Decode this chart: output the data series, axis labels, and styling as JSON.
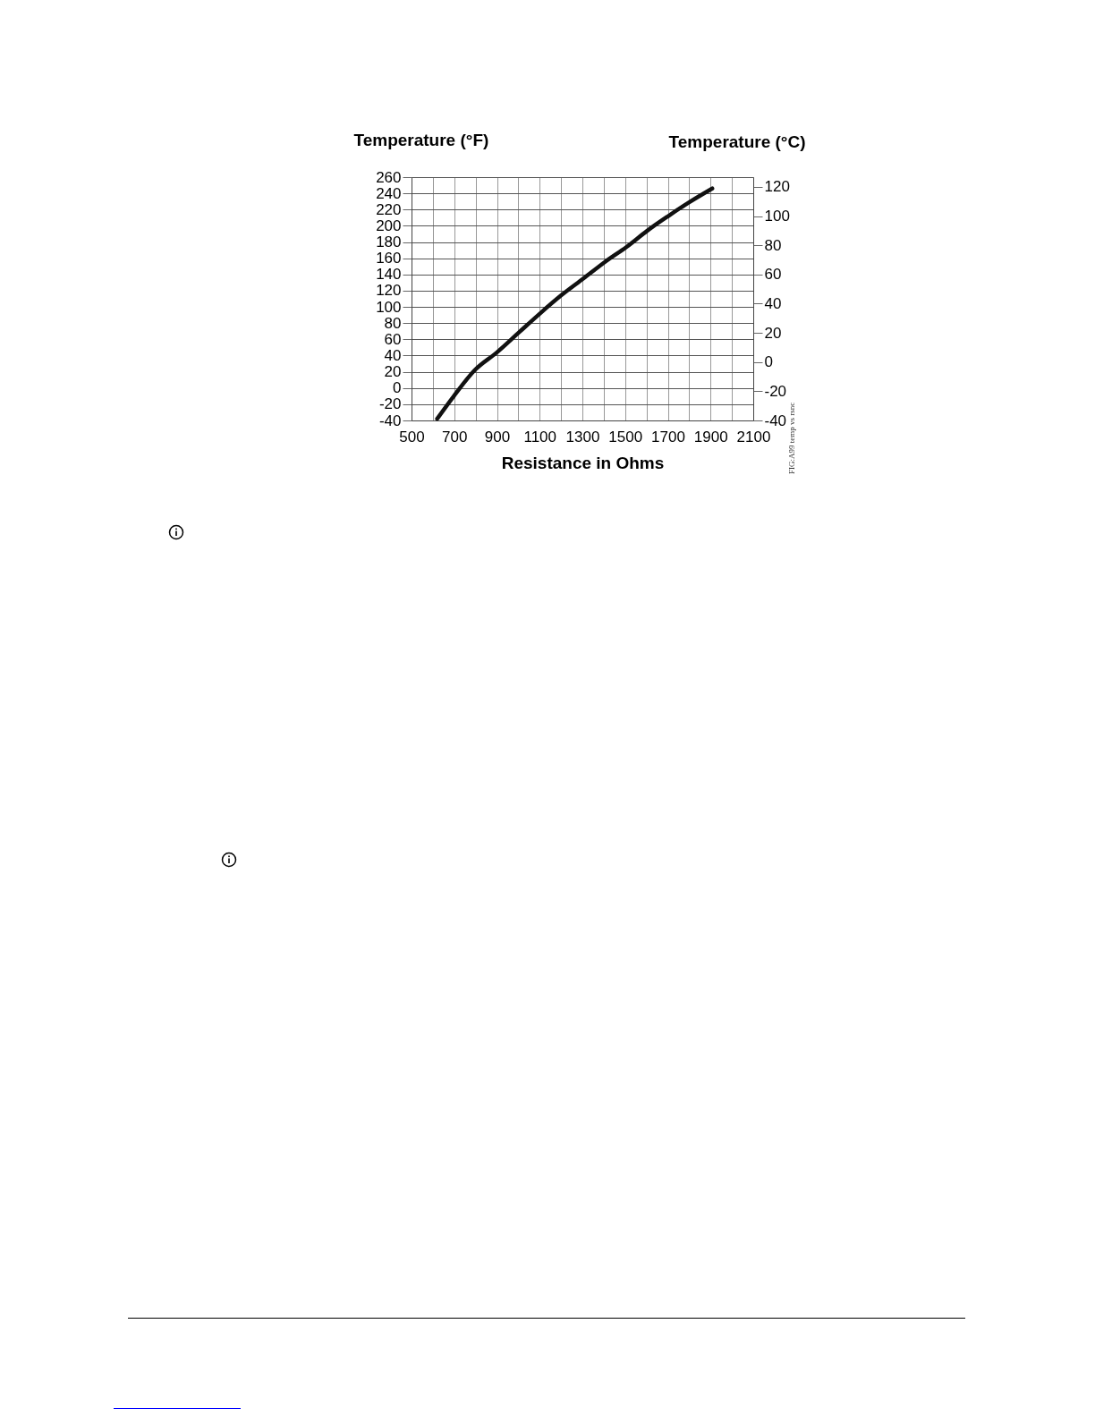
{
  "chart_data": {
    "type": "line",
    "xlabel": "Resistance in Ohms",
    "ylabel": "Temperature (°F)",
    "y2label": "Temperature (°C)",
    "annotations": [
      "FIG:A99 temp vs rsnc"
    ],
    "x": [
      620,
      698,
      796,
      900,
      1005,
      1102,
      1200,
      1305,
      1409,
      1507,
      1604,
      1702,
      1800,
      1908
    ],
    "series": [
      {
        "color": "#111111",
        "values": [
          -38,
          -10,
          22,
          44,
          69,
          92,
          114,
          135,
          156,
          174,
          194,
          212,
          229,
          246
        ]
      }
    ],
    "xlim": [
      500,
      2100
    ],
    "xticks": [
      500,
      {
        "value": 600,
        "label": null
      },
      700,
      {
        "value": 800,
        "label": null
      },
      900,
      {
        "value": 1000,
        "label": null
      },
      1100,
      {
        "value": 1200,
        "label": null
      },
      1300,
      {
        "value": 1400,
        "label": null
      },
      1500,
      {
        "value": 1600,
        "label": null
      },
      1700,
      {
        "value": 1800,
        "label": null
      },
      1900,
      {
        "value": 2000,
        "label": null
      },
      2100
    ],
    "ylim": [
      -40,
      260
    ],
    "yticks": [
      -40,
      -20,
      0,
      20,
      40,
      60,
      80,
      100,
      120,
      140,
      160,
      180,
      200,
      220,
      240,
      260
    ],
    "y2lim": [
      -40,
      126.67
    ],
    "y2ticks": [
      -40,
      -20,
      0,
      20,
      40,
      60,
      80,
      100,
      120
    ],
    "grid": true,
    "line_style": "solid",
    "marker": "none"
  }
}
